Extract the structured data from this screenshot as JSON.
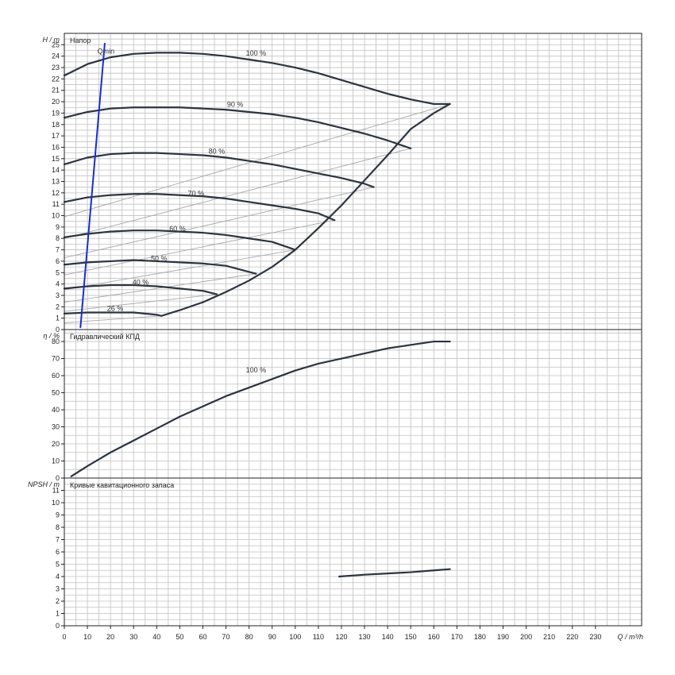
{
  "colors": {
    "background": "#ffffff",
    "grid": "#c0c0c0",
    "frame": "#222222",
    "curve": "#2b3440",
    "helper_curve": "#a8a8a8",
    "qmin_line": "#1a2ecc"
  },
  "x_axis": {
    "label": "Q / m³/h",
    "min": 0,
    "max": 250,
    "tick_labels": [
      "0",
      "10",
      "20",
      "30",
      "40",
      "50",
      "60",
      "70",
      "80",
      "90",
      "100",
      "110",
      "120",
      "130",
      "140",
      "150",
      "160",
      "170",
      "180",
      "190",
      "200",
      "210",
      "220",
      "230"
    ]
  },
  "chart_data": [
    {
      "type": "line",
      "title": "Напор",
      "ylabel": "H / m",
      "ylim": [
        0,
        26
      ],
      "y_tick_labels": [
        "0",
        "1",
        "2",
        "3",
        "4",
        "5",
        "6",
        "7",
        "8",
        "9",
        "10",
        "11",
        "12",
        "13",
        "14",
        "15",
        "16",
        "17",
        "18",
        "19",
        "20",
        "21",
        "22",
        "23",
        "24",
        "25"
      ],
      "series": [
        {
          "name": "100 %",
          "x": [
            0,
            10,
            20,
            30,
            40,
            50,
            60,
            70,
            80,
            90,
            100,
            110,
            120,
            130,
            140,
            150,
            160,
            167
          ],
          "y": [
            22.3,
            23.3,
            23.9,
            24.2,
            24.3,
            24.3,
            24.2,
            24.0,
            23.7,
            23.4,
            23.0,
            22.5,
            21.9,
            21.3,
            20.7,
            20.2,
            19.8,
            19.8
          ]
        },
        {
          "name": "90 %",
          "x": [
            0,
            10,
            20,
            30,
            40,
            50,
            60,
            70,
            80,
            90,
            100,
            110,
            120,
            130,
            140,
            150
          ],
          "y": [
            18.6,
            19.1,
            19.4,
            19.5,
            19.5,
            19.5,
            19.4,
            19.3,
            19.1,
            18.9,
            18.6,
            18.2,
            17.7,
            17.2,
            16.6,
            15.9
          ]
        },
        {
          "name": "80 %",
          "x": [
            0,
            10,
            20,
            30,
            40,
            50,
            60,
            70,
            80,
            90,
            100,
            110,
            120,
            130,
            134
          ],
          "y": [
            14.5,
            15.1,
            15.4,
            15.5,
            15.5,
            15.4,
            15.3,
            15.1,
            14.8,
            14.5,
            14.1,
            13.7,
            13.3,
            12.8,
            12.5
          ]
        },
        {
          "name": "70 %",
          "x": [
            0,
            10,
            20,
            30,
            40,
            50,
            60,
            70,
            80,
            90,
            100,
            110,
            117
          ],
          "y": [
            11.2,
            11.6,
            11.8,
            11.9,
            11.9,
            11.8,
            11.7,
            11.5,
            11.2,
            10.9,
            10.6,
            10.2,
            9.6
          ]
        },
        {
          "name": "60 %",
          "x": [
            0,
            10,
            20,
            30,
            40,
            50,
            60,
            70,
            80,
            90,
            100
          ],
          "y": [
            8.1,
            8.4,
            8.6,
            8.7,
            8.7,
            8.6,
            8.5,
            8.3,
            8.0,
            7.7,
            7.0
          ]
        },
        {
          "name": "50 %",
          "x": [
            0,
            10,
            20,
            30,
            40,
            50,
            60,
            70,
            83
          ],
          "y": [
            5.7,
            5.9,
            6.0,
            6.1,
            6.0,
            5.9,
            5.8,
            5.6,
            4.9
          ]
        },
        {
          "name": "40 %",
          "x": [
            0,
            10,
            20,
            30,
            40,
            50,
            60,
            66
          ],
          "y": [
            3.6,
            3.8,
            3.9,
            3.9,
            3.8,
            3.6,
            3.4,
            3.1
          ]
        },
        {
          "name": "26 %",
          "x": [
            0,
            10,
            20,
            30,
            40,
            42
          ],
          "y": [
            1.4,
            1.5,
            1.5,
            1.5,
            1.3,
            1.2
          ]
        },
        {
          "name": "max",
          "x": [
            42,
            50,
            60,
            70,
            80,
            90,
            100,
            110,
            120,
            130,
            140,
            150,
            160,
            167
          ],
          "y": [
            1.2,
            1.7,
            2.4,
            3.3,
            4.3,
            5.5,
            7.0,
            8.9,
            10.9,
            13.1,
            15.3,
            17.6,
            19.0,
            19.8
          ]
        },
        {
          "name": "Qmin",
          "x": [
            7,
            17.5
          ],
          "y": [
            0.2,
            25.1
          ]
        }
      ],
      "helper_lines": [
        {
          "x": [
            0,
            167
          ],
          "y": [
            9.9,
            19.8
          ]
        },
        {
          "x": [
            0,
            150
          ],
          "y": [
            8.0,
            15.9
          ]
        },
        {
          "x": [
            0,
            134
          ],
          "y": [
            6.3,
            12.5
          ]
        },
        {
          "x": [
            0,
            117
          ],
          "y": [
            4.8,
            9.6
          ]
        },
        {
          "x": [
            0,
            100
          ],
          "y": [
            3.5,
            7.0
          ]
        },
        {
          "x": [
            0,
            83
          ],
          "y": [
            2.4,
            4.9
          ]
        },
        {
          "x": [
            0,
            66
          ],
          "y": [
            1.6,
            3.1
          ]
        },
        {
          "x": [
            0,
            42
          ],
          "y": [
            0.6,
            1.2
          ]
        }
      ],
      "annotations": [
        {
          "text": "100 %",
          "x": 83,
          "y": 23.9
        },
        {
          "text": "90 %",
          "x": 74,
          "y": 19.4
        },
        {
          "text": "80 %",
          "x": 66,
          "y": 15.3
        },
        {
          "text": "70 %",
          "x": 57,
          "y": 11.6
        },
        {
          "text": "60 %",
          "x": 49,
          "y": 8.5
        },
        {
          "text": "50 %",
          "x": 41,
          "y": 5.9
        },
        {
          "text": "40 %",
          "x": 33,
          "y": 3.8
        },
        {
          "text": "26 %",
          "x": 22,
          "y": 1.5
        },
        {
          "text": "Qmin",
          "x": 18,
          "y": 24.1
        }
      ]
    },
    {
      "type": "line",
      "title": "Гидравлический КПД",
      "ylabel": "η / %",
      "ylim": [
        0,
        87
      ],
      "y_tick_labels": [
        "0",
        "10",
        "20",
        "30",
        "40",
        "50",
        "60",
        "70",
        "80"
      ],
      "series": [
        {
          "name": "100 %",
          "x": [
            3,
            10,
            20,
            30,
            40,
            50,
            60,
            70,
            80,
            90,
            100,
            110,
            120,
            130,
            140,
            150,
            160,
            167
          ],
          "y": [
            1,
            7,
            15,
            22,
            29,
            36,
            42,
            48,
            53,
            58,
            63,
            67,
            70,
            73,
            76,
            78,
            80,
            80
          ]
        }
      ],
      "annotations": [
        {
          "text": "100 %",
          "x": 83,
          "y": 61
        }
      ]
    },
    {
      "type": "line",
      "title": "Кривые кавитационного запаса",
      "ylabel": "NPSH / m",
      "ylim": [
        0,
        12
      ],
      "y_tick_labels": [
        "0",
        "1",
        "2",
        "3",
        "4",
        "5",
        "6",
        "7",
        "8",
        "9",
        "10",
        "11"
      ],
      "series": [
        {
          "x": [
            119,
            130,
            140,
            150,
            160,
            167
          ],
          "y": [
            4.0,
            4.15,
            4.25,
            4.35,
            4.5,
            4.6
          ]
        }
      ],
      "annotations": []
    }
  ]
}
